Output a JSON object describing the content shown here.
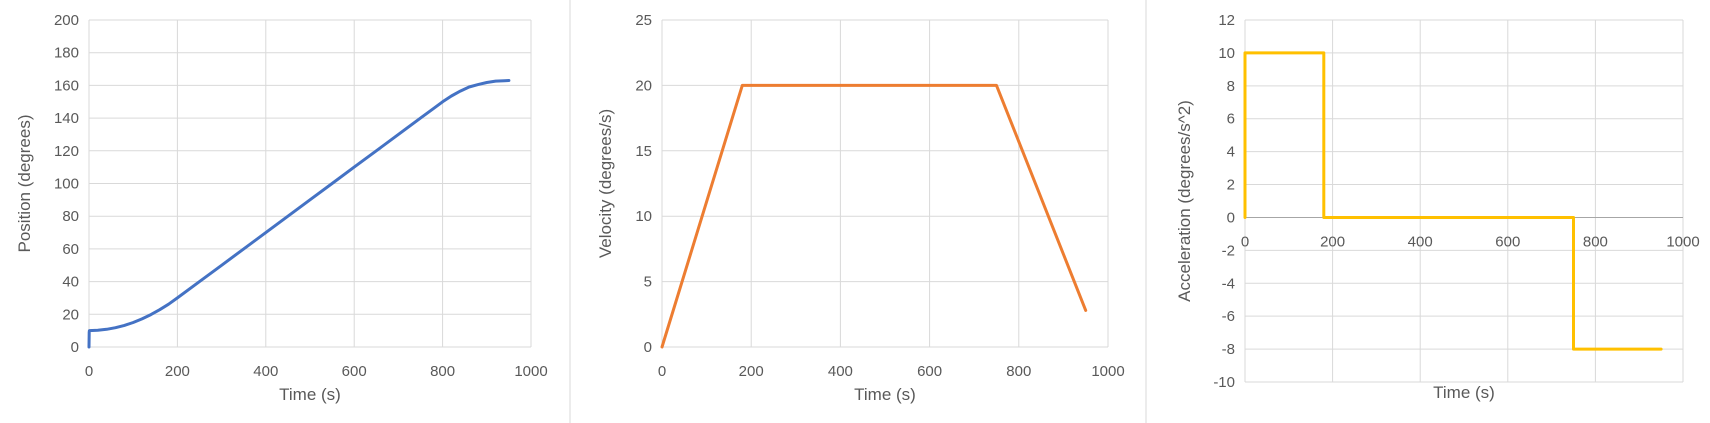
{
  "chart_data": [
    {
      "type": "line",
      "xlabel": "Time (s)",
      "ylabel": "Position (degrees)",
      "xlim": [
        0,
        1000
      ],
      "ylim": [
        0,
        200
      ],
      "x_ticks": [
        0,
        200,
        400,
        600,
        800,
        1000
      ],
      "y_ticks": [
        0,
        20,
        40,
        60,
        80,
        100,
        120,
        140,
        160,
        180,
        200
      ],
      "grid": true,
      "color": "#4472C4",
      "series": [
        {
          "x": [
            0,
            0.5,
            1,
            20,
            40,
            60,
            80,
            100,
            120,
            140,
            160,
            180,
            200,
            250,
            300,
            350,
            400,
            450,
            500,
            550,
            600,
            650,
            700,
            750,
            780,
            800,
            820,
            840,
            860,
            880,
            900,
            920,
            940,
            950
          ],
          "y": [
            0,
            9,
            10,
            10.2,
            10.8,
            11.8,
            13.2,
            15,
            17.2,
            19.8,
            22.8,
            26.2,
            30,
            40,
            50,
            60,
            70,
            80,
            90,
            100,
            110,
            120,
            130,
            140,
            146,
            150,
            153.5,
            156.5,
            159,
            160.5,
            161.8,
            162.6,
            162.9,
            163
          ]
        }
      ]
    },
    {
      "type": "line",
      "xlabel": "Time (s)",
      "ylabel": "Velocity (degrees/s)",
      "xlim": [
        0,
        1000
      ],
      "ylim": [
        0,
        25
      ],
      "x_ticks": [
        0,
        200,
        400,
        600,
        800,
        1000
      ],
      "y_ticks": [
        0,
        5,
        10,
        15,
        20,
        25
      ],
      "grid": true,
      "color": "#ED7D31",
      "series": [
        {
          "x": [
            0,
            180,
            750,
            950
          ],
          "y": [
            0,
            20,
            20,
            2.8
          ]
        }
      ]
    },
    {
      "type": "line",
      "xlabel": "Time (s)",
      "ylabel": "Acceleration (degrees/s^2)",
      "xlim": [
        0,
        1000
      ],
      "ylim": [
        -10,
        12
      ],
      "x_ticks": [
        0,
        200,
        400,
        600,
        800,
        1000
      ],
      "y_ticks": [
        -10,
        -8,
        -6,
        -4,
        -2,
        0,
        2,
        4,
        6,
        8,
        10,
        12
      ],
      "grid": true,
      "color": "#FFC000",
      "series": [
        {
          "x": [
            0,
            0,
            180,
            180,
            750,
            750,
            950
          ],
          "y": [
            0,
            10,
            10,
            0,
            0,
            -8,
            -8
          ]
        }
      ]
    }
  ]
}
